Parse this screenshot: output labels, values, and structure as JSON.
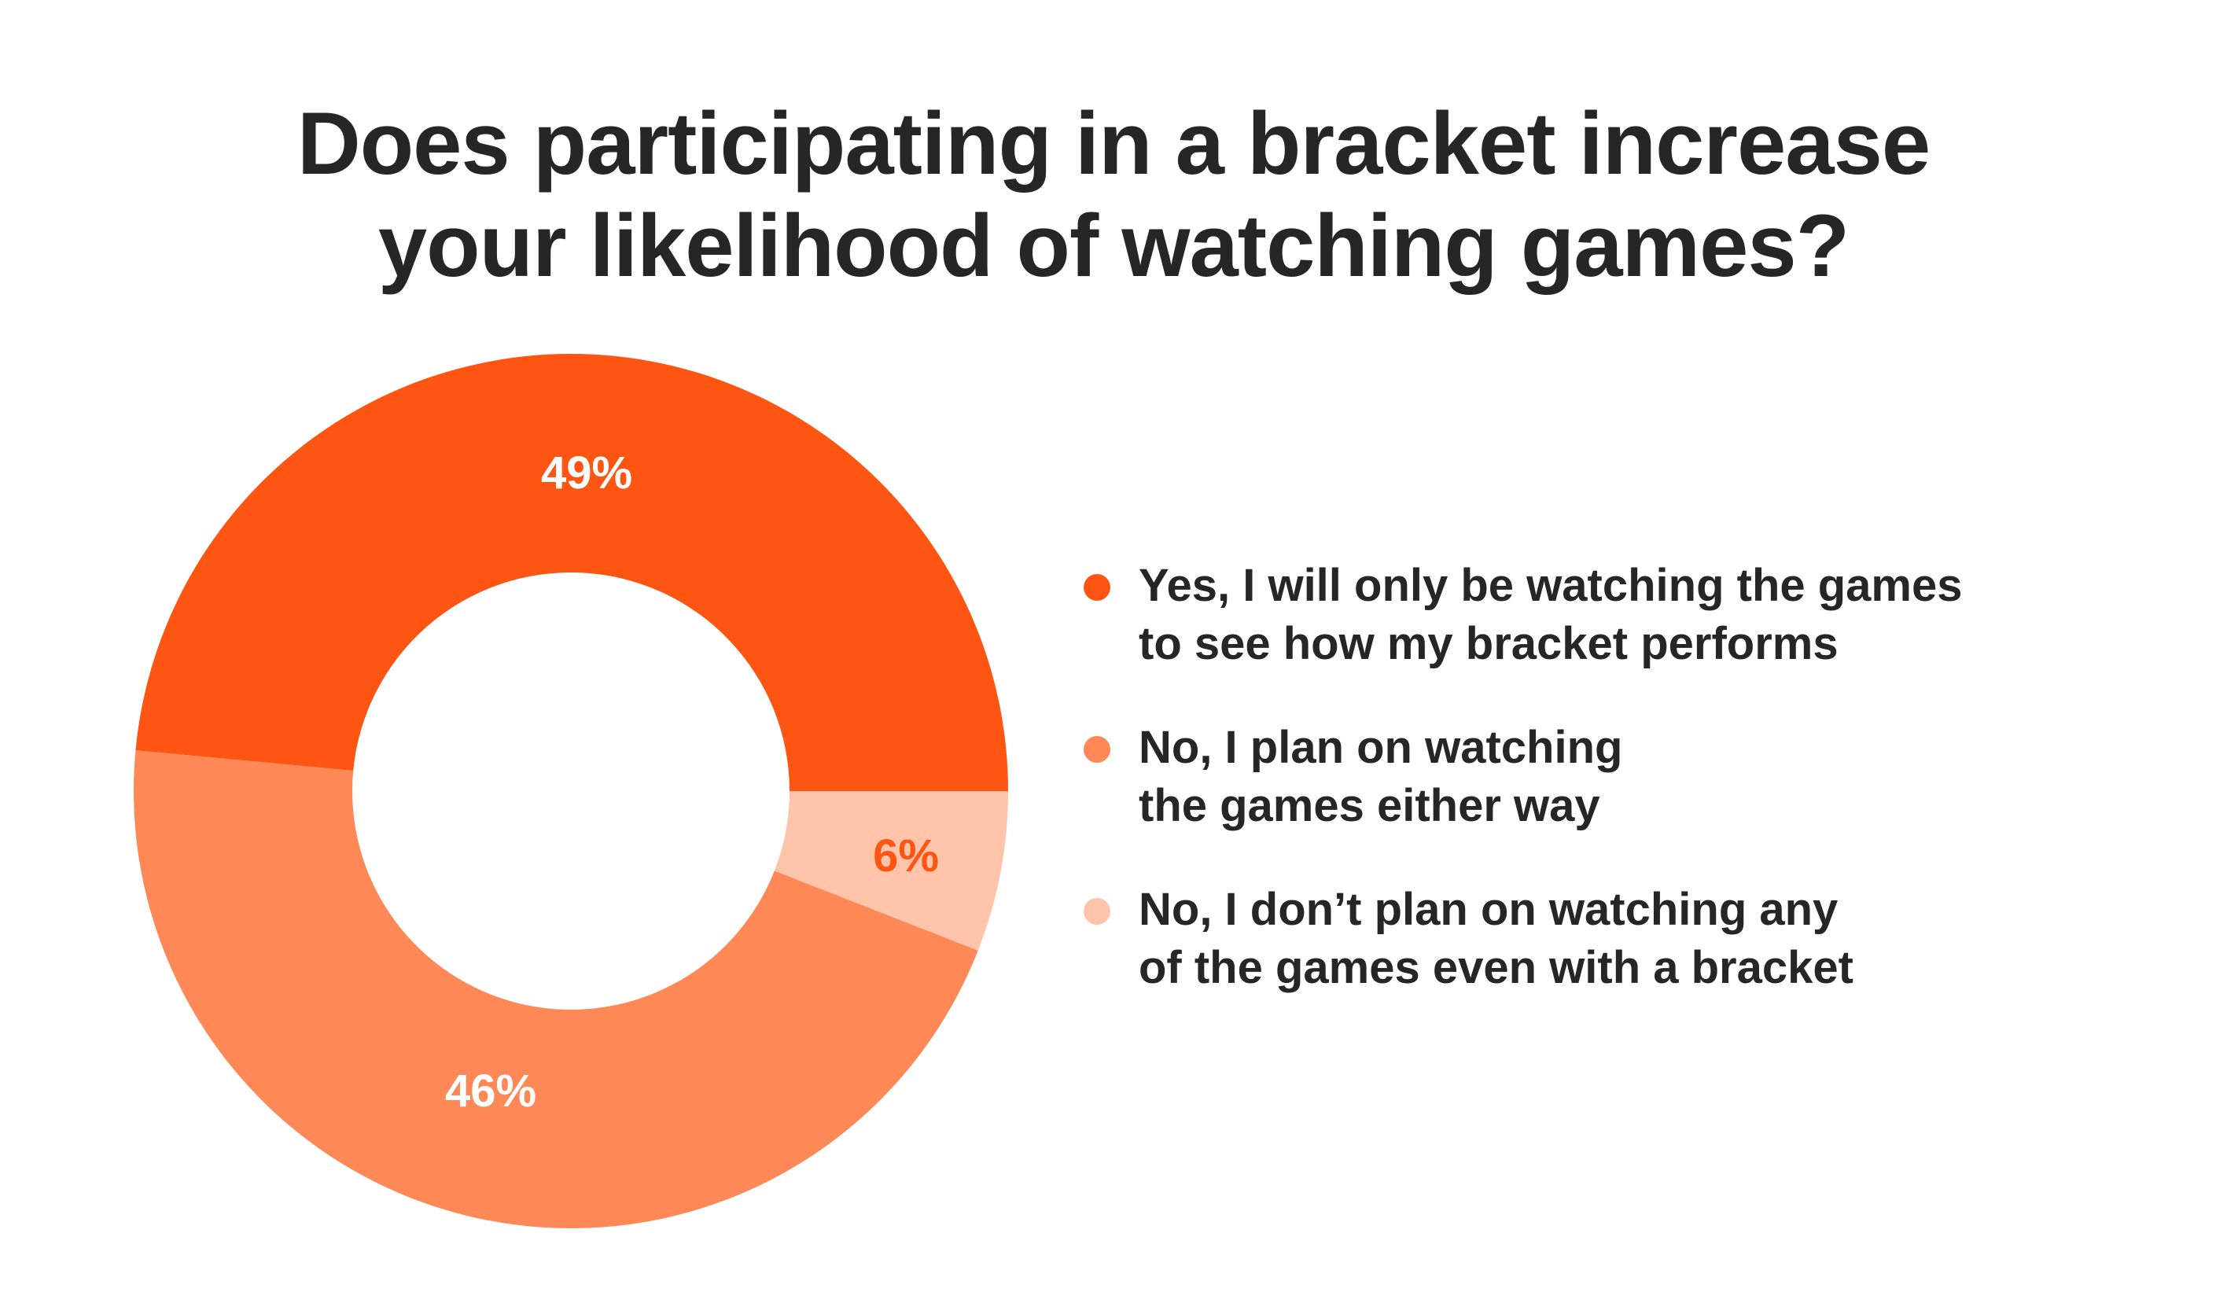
{
  "title": {
    "line1": "Does participating in a bracket increase",
    "line2": "your likelihood of watching games?"
  },
  "colors": {
    "yes_only_bracket": "#FF5512",
    "no_watch_anyway": "#FF8857",
    "no_not_watching": "#FFC4AA",
    "text_dark": "#262626",
    "label_light": "#FFFFFF",
    "label_accent": "#FF5512"
  },
  "legend": [
    {
      "line1": "Yes, I will only be watching the games",
      "line2": "to see how my bracket performs",
      "color": "#FF5512"
    },
    {
      "line1": "No, I plan on watching",
      "line2": "the games either way",
      "color": "#FF8857"
    },
    {
      "line1": "No, I don’t plan on watching any",
      "line2": "of the games even with a bracket",
      "color": "#FFC4AA"
    }
  ],
  "slice_labels": {
    "yes": "49%",
    "no_watch": "46%",
    "no_not": "6%"
  },
  "chart_data": {
    "type": "pie",
    "subtype": "donut",
    "title": "Does participating in a bracket increase your likelihood of watching games?",
    "categories": [
      "Yes, I will only be watching the games to see how my bracket performs",
      "No, I plan on watching the games either way",
      "No, I don’t plan on watching any of the games even with a bracket"
    ],
    "values": [
      49,
      46,
      6
    ],
    "unit": "%",
    "colors": [
      "#FF5512",
      "#FF8857",
      "#FFC4AA"
    ],
    "legend_position": "right",
    "data_labels": [
      "49%",
      "46%",
      "6%"
    ],
    "start_angle": "3 o'clock",
    "direction": "Yes slice counterclockwise over top; 6% slice clockwise below 3 o'clock"
  }
}
